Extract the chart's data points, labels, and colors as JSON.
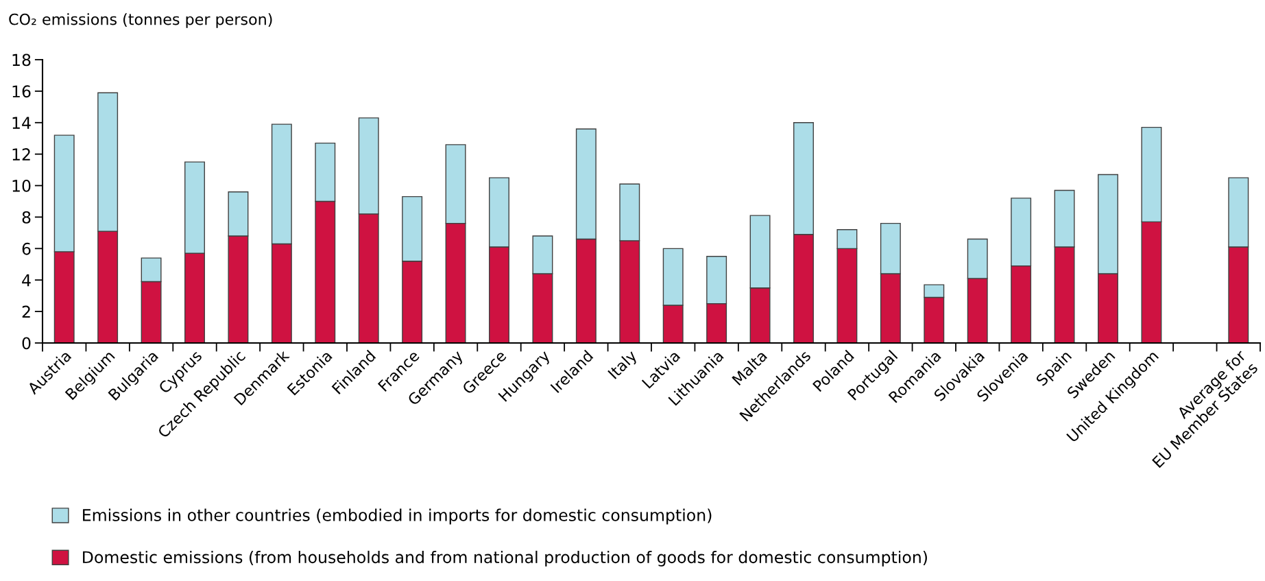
{
  "chart_data": {
    "type": "bar",
    "stacked": true,
    "ylabel": "CO₂ emissions (tonnes per person)",
    "categories": [
      "Austria",
      "Belgium",
      "Bulgaria",
      "Cyprus",
      "Czech Republic",
      "Denmark",
      "Estonia",
      "Finland",
      "France",
      "Germany",
      "Greece",
      "Hungary",
      "Ireland",
      "Italy",
      "Latvia",
      "Lithuania",
      "Malta",
      "Netherlands",
      "Poland",
      "Portugal",
      "Romania",
      "Slovakia",
      "Slovenia",
      "Spain",
      "Sweden",
      "United Kingdom",
      null,
      "Average for\nEU Member States"
    ],
    "series": [
      {
        "name": "Domestic emissions (from households and from national production of goods for domestic consumption)",
        "color": "#cf1241",
        "values": [
          5.8,
          7.1,
          3.9,
          5.7,
          6.8,
          6.3,
          9.0,
          8.2,
          5.2,
          7.6,
          6.1,
          4.4,
          6.6,
          6.5,
          2.4,
          2.5,
          3.5,
          6.9,
          6.0,
          4.4,
          2.9,
          4.1,
          4.9,
          6.1,
          4.4,
          7.7,
          null,
          6.1
        ]
      },
      {
        "name": "Emissions in other countries (embodied in imports for domestic consumption)",
        "color": "#acdde8",
        "values": [
          7.4,
          8.8,
          1.5,
          5.8,
          2.8,
          7.6,
          3.7,
          6.1,
          4.1,
          5.0,
          4.4,
          2.4,
          7.0,
          3.6,
          3.6,
          3.0,
          4.6,
          7.1,
          1.2,
          3.2,
          0.8,
          2.5,
          4.3,
          3.6,
          6.3,
          6.0,
          null,
          4.4
        ]
      }
    ],
    "ylim": [
      0,
      18
    ],
    "yticks": [
      0,
      2,
      4,
      6,
      8,
      10,
      12,
      14,
      16,
      18
    ],
    "grid": false,
    "legend": "bottom left"
  }
}
